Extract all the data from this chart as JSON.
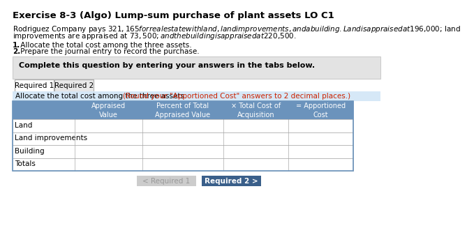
{
  "title": "Exercise 8-3 (Algo) Lump-sum purchase of plant assets LO C1",
  "body_line1": "Rodriguez Company pays $321,165 for real estate with land, land improvements, and a building. Land is appraised at $196,000; land",
  "body_line2": "improvements are appraised at $73,500; and the building is appraised at $220,500.",
  "list_item1": "1. Allocate the total cost among the three assets.",
  "list_item2": "2. Prepare the journal entry to record the purchase.",
  "tab_box_text": "Complete this question by entering your answers in the tabs below.",
  "tab1_label": "Required 1",
  "tab2_label": "Required 2",
  "instruction_text": "Allocate the total cost among the three assets.",
  "instruction_highlight": "(Round your \"Apportioned Cost\" answers to 2 decimal places.)",
  "table_header_bg": "#6b93bc",
  "table_header_text_color": "#ffffff",
  "table_border_color": "#6b93bc",
  "table_col_headers": [
    "Appraised\nValue",
    "Percent of Total\nAppraised Value",
    "× Total Cost of\nAcquisition",
    "= Apportioned\nCost"
  ],
  "table_rows": [
    "Land",
    "Land improvements",
    "Building",
    "Totals"
  ],
  "btn1_label": "< Required 1",
  "btn2_label": "Required 2 >",
  "btn1_bg": "#cccccc",
  "btn2_bg": "#3a5f8a",
  "btn1_text_color": "#999999",
  "btn2_text_color": "#ffffff",
  "tab_box_bg": "#e3e3e3",
  "instruction_bar_bg": "#d6e8f7",
  "page_bg": "#ffffff",
  "row_line_color": "#aaaaaa",
  "tab_active_bg": "#ffffff",
  "tab_inactive_bg": "#e8e8e8"
}
